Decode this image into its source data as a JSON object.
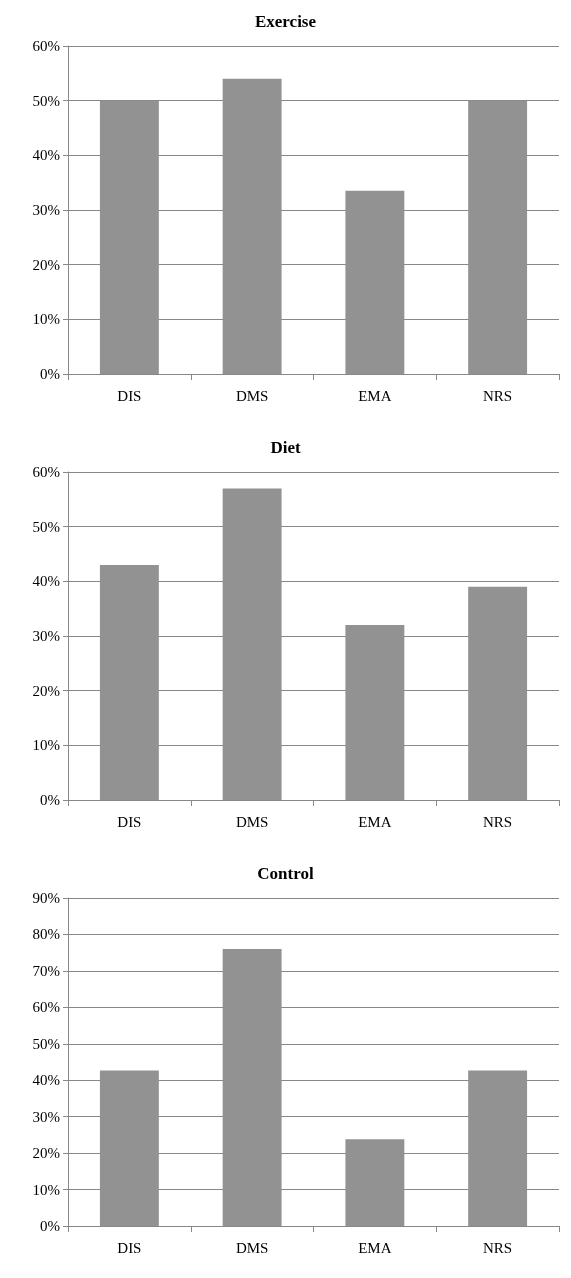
{
  "chart_data": [
    {
      "type": "bar",
      "title": "Exercise",
      "categories": [
        "DIS",
        "DMS",
        "EMA",
        "NRS"
      ],
      "values": [
        50,
        54,
        33.5,
        50
      ],
      "color": "#929292",
      "ylim": [
        0,
        60
      ],
      "yticks": [
        {
          "value": 0,
          "label": "0%"
        },
        {
          "value": 10,
          "label": "10%"
        },
        {
          "value": 20,
          "label": "20%"
        },
        {
          "value": 30,
          "label": "30%"
        },
        {
          "value": 40,
          "label": "40%"
        },
        {
          "value": 50,
          "label": "50%"
        },
        {
          "value": 60,
          "label": "60%"
        }
      ],
      "grid": "y"
    },
    {
      "type": "bar",
      "title": "Diet",
      "categories": [
        "DIS",
        "DMS",
        "EMA",
        "NRS"
      ],
      "values": [
        43,
        57,
        32,
        39
      ],
      "color": "#929292",
      "ylim": [
        0,
        60
      ],
      "yticks": [
        {
          "value": 0,
          "label": "0%"
        },
        {
          "value": 10,
          "label": "10%"
        },
        {
          "value": 20,
          "label": "20%"
        },
        {
          "value": 30,
          "label": "30%"
        },
        {
          "value": 40,
          "label": "40%"
        },
        {
          "value": 50,
          "label": "50%"
        },
        {
          "value": 60,
          "label": "60%"
        }
      ],
      "grid": "y"
    },
    {
      "type": "bar",
      "title": "Control",
      "categories": [
        "DIS",
        "DMS",
        "EMA",
        "NRS"
      ],
      "values": [
        42.7,
        76,
        23.8,
        42.7
      ],
      "color": "#929292",
      "ylim": [
        0,
        90
      ],
      "yticks": [
        {
          "value": 0,
          "label": "0%"
        },
        {
          "value": 10,
          "label": "10%"
        },
        {
          "value": 20,
          "label": "20%"
        },
        {
          "value": 30,
          "label": "30%"
        },
        {
          "value": 40,
          "label": "40%"
        },
        {
          "value": 50,
          "label": "50%"
        },
        {
          "value": 60,
          "label": "60%"
        },
        {
          "value": 70,
          "label": "70%"
        },
        {
          "value": 80,
          "label": "80%"
        },
        {
          "value": 90,
          "label": "90%"
        }
      ],
      "grid": "y"
    }
  ]
}
